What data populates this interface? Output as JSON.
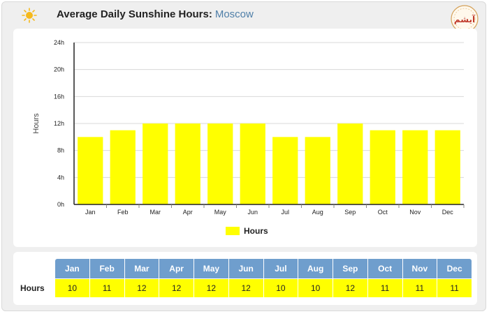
{
  "header": {
    "title": "Average Daily Sunshine Hours:",
    "city": "Moscow",
    "logo_text": "آیشم"
  },
  "legend": {
    "label": "Hours"
  },
  "table": {
    "row_label": "Hours"
  },
  "colors": {
    "bar": "#ffff00",
    "table_header": "#6f9ecd",
    "sun": "#f5b91c"
  },
  "chart_data": {
    "type": "bar",
    "title": "Average Daily Sunshine Hours: Moscow",
    "categories": [
      "Jan",
      "Feb",
      "Mar",
      "Apr",
      "May",
      "Jun",
      "Jul",
      "Aug",
      "Sep",
      "Oct",
      "Nov",
      "Dec"
    ],
    "series": [
      {
        "name": "Hours",
        "values": [
          10,
          11,
          12,
          12,
          12,
          12,
          10,
          10,
          12,
          11,
          11,
          11
        ]
      }
    ],
    "ylabel": "Hours",
    "xlabel": "",
    "ylim": [
      0,
      24
    ],
    "yticks": [
      "0h",
      "4h",
      "8h",
      "12h",
      "16h",
      "20h",
      "24h"
    ],
    "grid": true,
    "legend_position": "bottom"
  }
}
